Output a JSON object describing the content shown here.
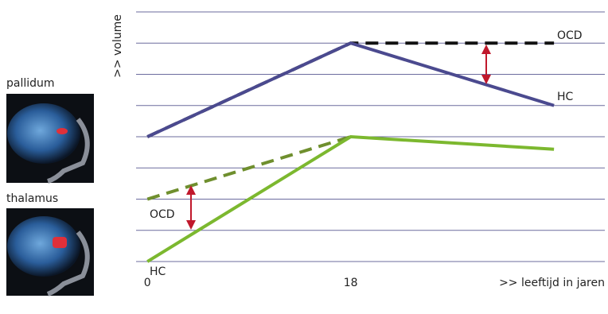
{
  "chart_data": {
    "type": "line",
    "x_label": ">> leeftijd in jaren",
    "y_label": ">> volume",
    "x": [
      0,
      18,
      36
    ],
    "xlim": [
      -1,
      40.5
    ],
    "xticks": [
      0,
      18
    ],
    "ylim": [
      -0.6,
      8.3
    ],
    "yticks": [
      0,
      1,
      2,
      3,
      4,
      5,
      6,
      7,
      8
    ],
    "grid": true,
    "series": [
      {
        "name": "OCD",
        "color": "#111111",
        "dashed": true,
        "values": [
          4,
          7,
          7
        ]
      },
      {
        "name": "HC",
        "color": "#4b4a8f",
        "dashed": false,
        "values": [
          4,
          7,
          5
        ]
      },
      {
        "name": "OCD",
        "color": "#6f8f2e",
        "dashed": true,
        "values": [
          2,
          4,
          null
        ]
      },
      {
        "name": "HC",
        "color": "#7cb82f",
        "dashed": false,
        "values": [
          0,
          4,
          3.6
        ]
      }
    ]
  },
  "side_panels": {
    "labels": [
      "pallidum",
      "thalamus"
    ]
  }
}
